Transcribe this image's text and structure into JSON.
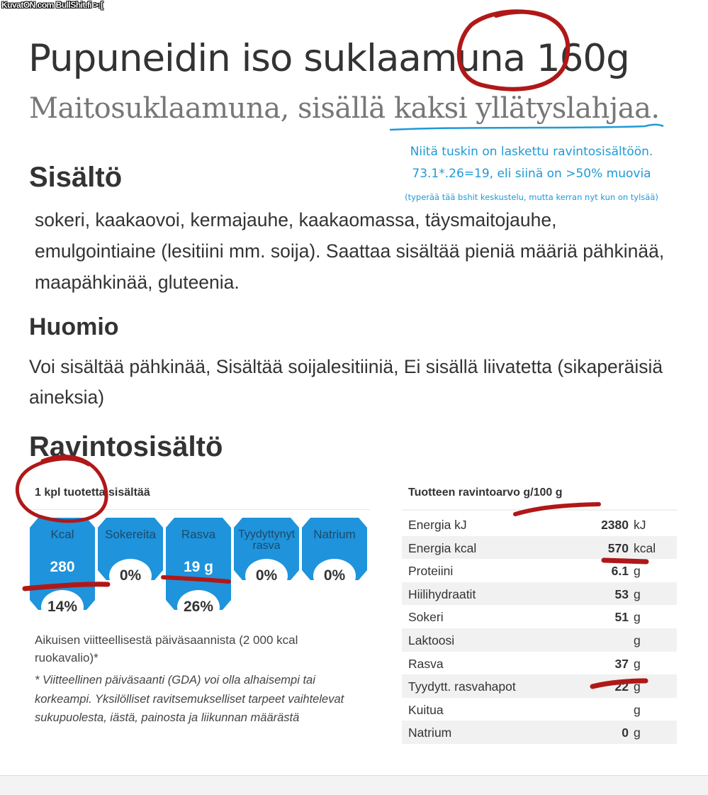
{
  "watermark": "KuvatON.com BullShit.fi >:[",
  "product": {
    "title": "Pupuneidin iso suklaamuna 160g",
    "subtitle": "Maitosuklaamuna, sisällä kaksi yllätyslahjaa."
  },
  "annotation": {
    "line1": "Niitä tuskin on laskettu ravintosisältöön.",
    "line2": "73.1*.26=19, eli siinä on >50% muovia",
    "line3": "(typerää tää bshit keskustelu, mutta kerran nyt kun on tylsää)",
    "color": "#1e9ad6",
    "ink_color": "#b01818"
  },
  "contents": {
    "heading": "Sisältö",
    "text": "sokeri, kaakaovoi, kermajauhe, kaakaomassa, täysmaitojauhe, emulgointiaine (lesitiini mm. soija). Saattaa sisältää pieniä määriä pähkinää, maapähkinää, gluteenia."
  },
  "notice": {
    "heading": "Huomio",
    "text": "Voi sisältää pähkinää, Sisältää soijalesitiiniä, Ei sisällä liivatetta (sikaperäisiä aineksia)"
  },
  "nutrition": {
    "heading": "Ravintosisältö",
    "per_piece": {
      "heading": "1 kpl tuotetta sisältää",
      "badges": [
        {
          "label": "Kcal",
          "value": "280",
          "percent": "14%"
        },
        {
          "label": "Sokereita",
          "value": "",
          "percent": "0%"
        },
        {
          "label": "Rasva",
          "value": "19 g",
          "percent": "26%"
        },
        {
          "label": "Tyydyttynyt rasva",
          "value": "",
          "percent": "0%"
        },
        {
          "label": "Natrium",
          "value": "",
          "percent": "0%"
        }
      ],
      "gda_note": "Aikuisen viitteellisestä päiväsaannista (2 000 kcal ruokavalio)*",
      "footnote": "* Viitteellinen päiväsaanti (GDA) voi olla alhaisempi tai korkeampi. Yksilölliset ravitsemukselliset tarpeet vaihtelevat sukupuolesta, iästä, painosta ja liikunnan määrästä",
      "badge_color": "#1f93dc"
    },
    "per_100g": {
      "heading": "Tuotteen ravintoarvo g/100 g",
      "rows": [
        {
          "name": "Energia kJ",
          "value": "2380",
          "unit": "kJ"
        },
        {
          "name": "Energia kcal",
          "value": "570",
          "unit": "kcal"
        },
        {
          "name": "Proteiini",
          "value": "6.1",
          "unit": "g"
        },
        {
          "name": "Hiilihydraatit",
          "value": "53",
          "unit": "g"
        },
        {
          "name": "Sokeri",
          "value": "51",
          "unit": "g"
        },
        {
          "name": "Laktoosi",
          "value": "",
          "unit": "g"
        },
        {
          "name": "Rasva",
          "value": "37",
          "unit": "g"
        },
        {
          "name": "Tyydytt. rasvahapot",
          "value": "22",
          "unit": "g"
        },
        {
          "name": "Kuitua",
          "value": "",
          "unit": "g"
        },
        {
          "name": "Natrium",
          "value": "0",
          "unit": "g"
        }
      ]
    }
  }
}
